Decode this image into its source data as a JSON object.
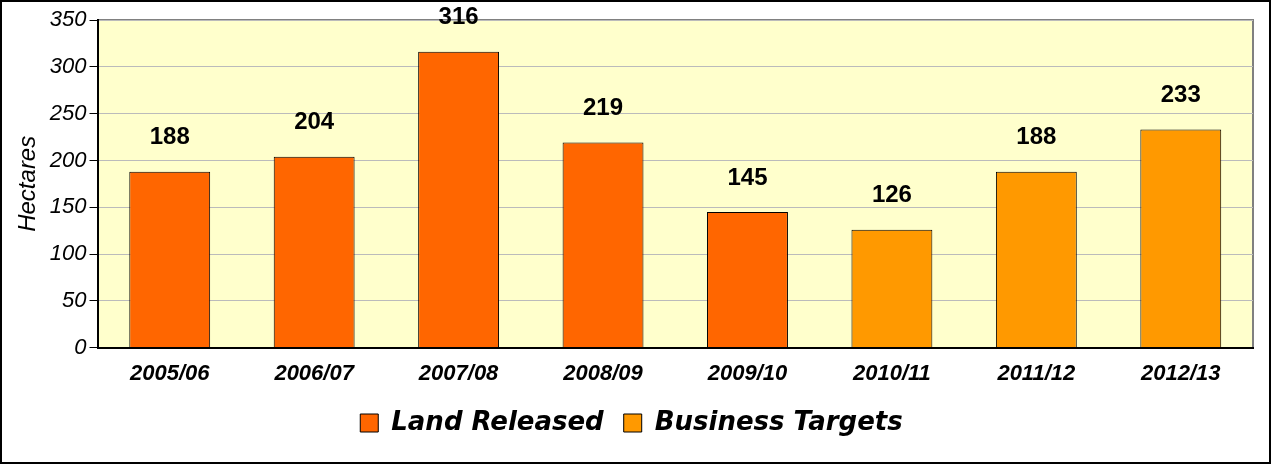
{
  "chart_data": {
    "type": "bar",
    "ylabel": "Hectares",
    "categories": [
      "2005/06",
      "2006/07",
      "2007/08",
      "2008/09",
      "2009/10",
      "2010/11",
      "2011/12",
      "2012/13"
    ],
    "series": [
      {
        "name": "Land Released",
        "color": "#ff6600",
        "values": [
          188,
          204,
          316,
          219,
          145,
          null,
          null,
          null
        ]
      },
      {
        "name": "Business Targets",
        "color": "#ff9900",
        "values": [
          null,
          null,
          null,
          null,
          null,
          126,
          188,
          233
        ]
      }
    ],
    "ylim": [
      0,
      350
    ],
    "yticks": [
      0,
      50,
      100,
      150,
      200,
      250,
      300,
      350
    ],
    "grid": "y",
    "legend": "bottom",
    "data_labels": true
  }
}
